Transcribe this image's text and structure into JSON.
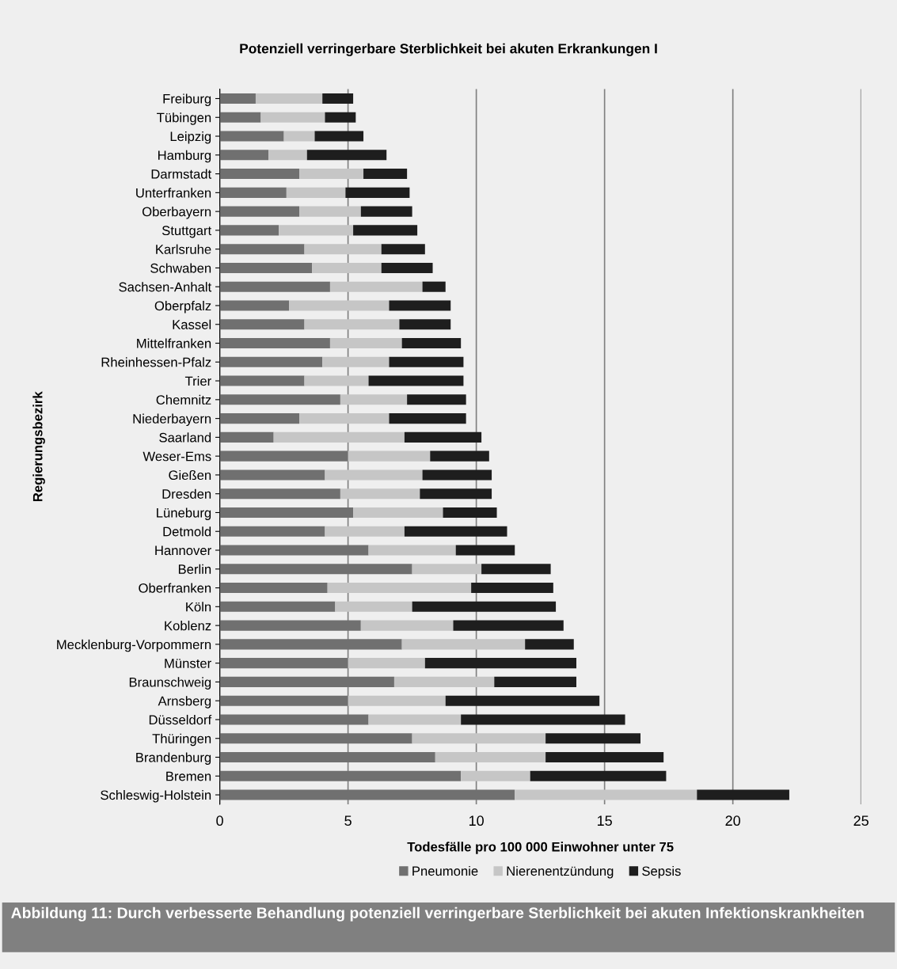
{
  "chart_data": {
    "type": "bar",
    "orientation": "horizontal",
    "stacked": true,
    "title": "Potenziell verringerbare Sterblichkeit bei akuten Erkrankungen I",
    "xlabel": "Todesfälle pro 100 000 Einwohner unter 75",
    "ylabel": "Regierungsbezirk",
    "categories": [
      "Freiburg",
      "Tübingen",
      "Leipzig",
      "Hamburg",
      "Darmstadt",
      "Unterfranken",
      "Oberbayern",
      "Stuttgart",
      "Karlsruhe",
      "Schwaben",
      "Sachsen-Anhalt",
      "Oberpfalz",
      "Kassel",
      "Mittelfranken",
      "Rheinhessen-Pfalz",
      "Trier",
      "Chemnitz",
      "Niederbayern",
      "Saarland",
      "Weser-Ems",
      "Gießen",
      "Dresden",
      "Lüneburg",
      "Detmold",
      "Hannover",
      "Berlin",
      "Oberfranken",
      "Köln",
      "Koblenz",
      "Mecklenburg-Vorpommern",
      "Münster",
      "Braunschweig",
      "Arnsberg",
      "Düsseldorf",
      "Thüringen",
      "Brandenburg",
      "Bremen",
      "Schleswig-Holstein"
    ],
    "series": [
      {
        "name": "Pneumonie",
        "color": "#707070",
        "values": [
          1.4,
          1.6,
          2.5,
          1.9,
          3.1,
          2.6,
          3.1,
          2.3,
          3.3,
          3.6,
          4.3,
          2.7,
          3.3,
          4.3,
          4.0,
          3.3,
          4.7,
          3.1,
          2.1,
          5.0,
          4.1,
          4.7,
          5.2,
          4.1,
          5.8,
          7.5,
          4.2,
          4.5,
          5.5,
          7.1,
          5.0,
          6.8,
          5.0,
          5.8,
          7.5,
          8.4,
          9.4,
          11.5
        ]
      },
      {
        "name": "Nierenentzündung",
        "color": "#c6c6c6",
        "values": [
          2.6,
          2.5,
          1.2,
          1.5,
          2.5,
          2.3,
          2.4,
          2.9,
          3.0,
          2.7,
          3.6,
          3.9,
          3.7,
          2.8,
          2.6,
          2.5,
          2.6,
          3.5,
          5.1,
          3.2,
          3.8,
          3.1,
          3.5,
          3.1,
          3.4,
          2.7,
          5.6,
          3.0,
          3.6,
          4.8,
          3.0,
          3.9,
          3.8,
          3.6,
          5.2,
          4.3,
          2.7,
          7.1
        ]
      },
      {
        "name": "Sepsis",
        "color": "#1e1e1e",
        "values": [
          1.2,
          1.2,
          1.9,
          3.1,
          1.7,
          2.5,
          2.0,
          2.5,
          1.7,
          2.0,
          0.9,
          2.4,
          2.0,
          2.3,
          2.9,
          3.7,
          2.3,
          3.0,
          3.0,
          2.3,
          2.7,
          2.8,
          2.1,
          4.0,
          2.3,
          2.7,
          3.2,
          5.6,
          4.3,
          1.9,
          5.9,
          3.2,
          6.0,
          6.4,
          3.7,
          4.6,
          5.3,
          3.6
        ]
      }
    ],
    "xlim": [
      0,
      25
    ],
    "xticks": [
      0,
      5,
      10,
      15,
      20,
      25
    ],
    "grid": "x",
    "legend": "bottom",
    "annotations": [
      "Abbildung 11: Durch verbesserte Behandlung potenziell verringerbare Sterblichkeit bei akuten Infektionskrankheiten"
    ]
  }
}
